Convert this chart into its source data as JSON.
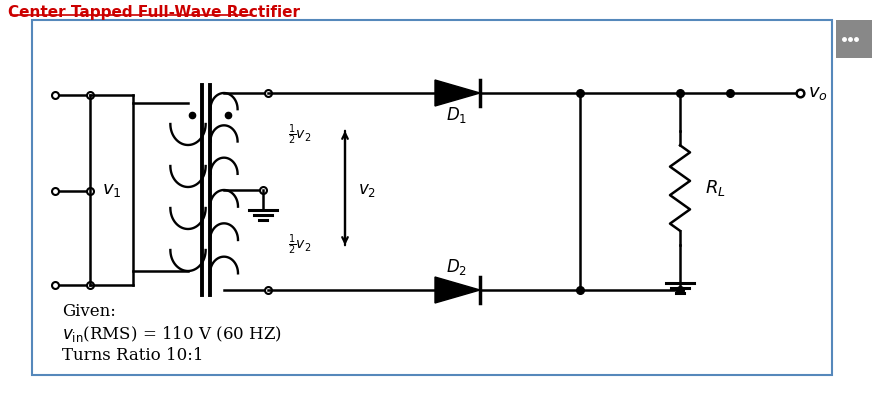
{
  "title": "Center Tapped Full-Wave Rectifier",
  "title_color": "#CC0000",
  "background_color": "#ffffff",
  "border_color": "#5588BB",
  "given_text": "Given:",
  "given_line2": "Turns Ratio 10:1",
  "fig_width": 8.76,
  "fig_height": 4.03,
  "dpi": 100
}
